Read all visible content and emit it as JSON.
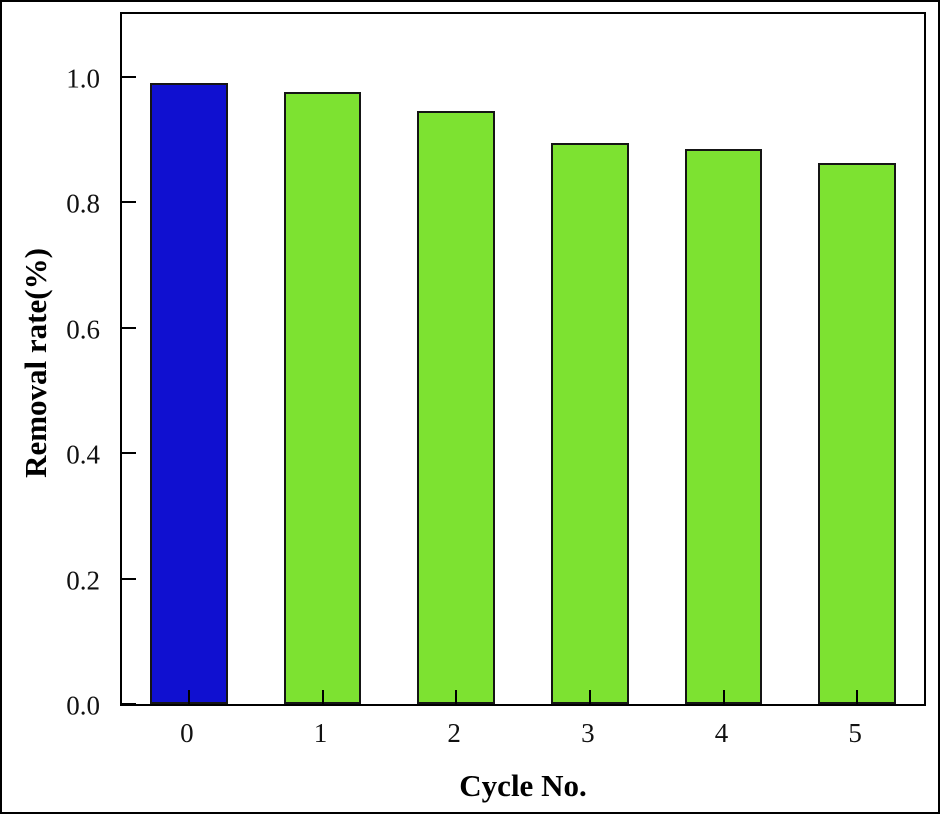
{
  "chart_data": {
    "type": "bar",
    "categories": [
      "0",
      "1",
      "2",
      "3",
      "4",
      "5"
    ],
    "values": [
      0.99,
      0.975,
      0.945,
      0.895,
      0.885,
      0.862
    ],
    "bar_colors": [
      "#1010d0",
      "#7de231",
      "#7de231",
      "#7de231",
      "#7de231",
      "#7de231"
    ],
    "bar_edge_color": "#151515",
    "title": "",
    "xlabel": "Cycle No.",
    "ylabel": "Removal rate(%)",
    "ylim": [
      0,
      1.1
    ],
    "yticks": [
      0.0,
      0.2,
      0.4,
      0.6,
      0.8,
      1.0
    ],
    "ytick_labels": [
      "0.0",
      "0.2",
      "0.4",
      "0.6",
      "0.8",
      "1.0"
    ],
    "grid": false,
    "legend": "none",
    "bar_width_fraction": 0.58
  }
}
